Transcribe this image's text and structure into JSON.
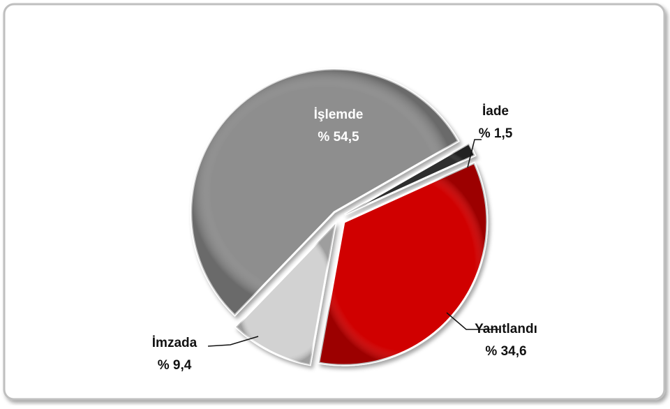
{
  "chart_data": {
    "type": "pie",
    "categories": [
      "İşlemde",
      "İade",
      "Yanıtlandı",
      "İmzada"
    ],
    "values": [
      54.5,
      1.5,
      34.6,
      9.4
    ],
    "value_labels": [
      "% 54,5",
      "% 1,5",
      "% 34,6",
      "% 9,4"
    ],
    "colors": [
      "#8e8e8e",
      "#2e2e2e",
      "#d00000",
      "#d2d2d2"
    ]
  }
}
